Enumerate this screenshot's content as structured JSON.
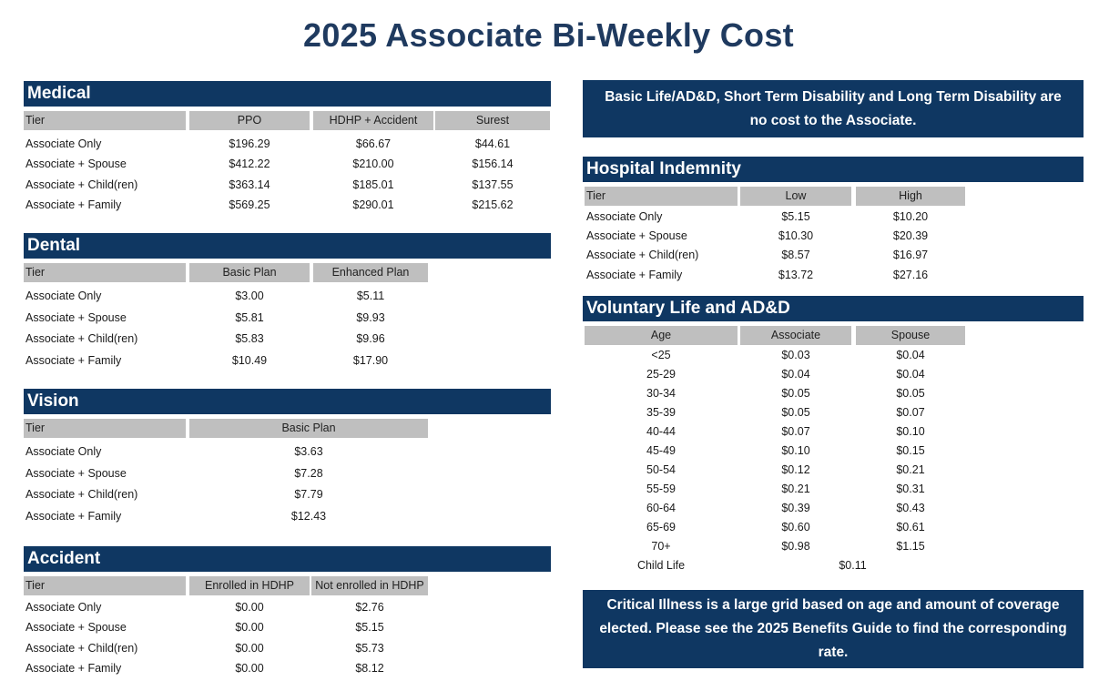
{
  "title": "2025 Associate Bi-Weekly Cost",
  "medical": {
    "header": "Medical",
    "columns": [
      "Tier",
      "PPO",
      "HDHP + Accident",
      "Surest"
    ],
    "rows": [
      [
        "Associate Only",
        "$196.29",
        "$66.67",
        "$44.61"
      ],
      [
        "Associate + Spouse",
        "$412.22",
        "$210.00",
        "$156.14"
      ],
      [
        "Associate + Child(ren)",
        "$363.14",
        "$185.01",
        "$137.55"
      ],
      [
        "Associate + Family",
        "$569.25",
        "$290.01",
        "$215.62"
      ]
    ]
  },
  "dental": {
    "header": "Dental",
    "columns": [
      "Tier",
      "Basic Plan",
      "Enhanced Plan"
    ],
    "rows": [
      [
        "Associate Only",
        "$3.00",
        "$5.11"
      ],
      [
        "Associate + Spouse",
        "$5.81",
        "$9.93"
      ],
      [
        "Associate + Child(ren)",
        "$5.83",
        "$9.96"
      ],
      [
        "Associate + Family",
        "$10.49",
        "$17.90"
      ]
    ]
  },
  "vision": {
    "header": "Vision",
    "columns": [
      "Tier",
      "Basic Plan"
    ],
    "rows": [
      [
        "Associate Only",
        "$3.63"
      ],
      [
        "Associate + Spouse",
        "$7.28"
      ],
      [
        "Associate + Child(ren)",
        "$7.79"
      ],
      [
        "Associate + Family",
        "$12.43"
      ]
    ]
  },
  "accident": {
    "header": "Accident",
    "columns": [
      "Tier",
      "Enrolled in HDHP",
      "Not enrolled in HDHP"
    ],
    "rows": [
      [
        "Associate Only",
        "$0.00",
        "$2.76"
      ],
      [
        "Associate + Spouse",
        "$0.00",
        "$5.15"
      ],
      [
        "Associate + Child(ren)",
        "$0.00",
        "$5.73"
      ],
      [
        "Associate + Family",
        "$0.00",
        "$8.12"
      ]
    ]
  },
  "notice_top": "Basic Life/AD&D, Short Term Disability and Long Term Disability are no cost to the Associate.",
  "hospital": {
    "header": "Hospital Indemnity",
    "columns": [
      "Tier",
      "Low",
      "High"
    ],
    "rows": [
      [
        "Associate Only",
        "$5.15",
        "$10.20"
      ],
      [
        "Associate + Spouse",
        "$10.30",
        "$20.39"
      ],
      [
        "Associate + Child(ren)",
        "$8.57",
        "$16.97"
      ],
      [
        "Associate + Family",
        "$13.72",
        "$27.16"
      ]
    ]
  },
  "voluntary": {
    "header": "Voluntary Life and AD&D",
    "columns": [
      "Age",
      "Associate",
      "Spouse"
    ],
    "rows": [
      [
        "<25",
        "$0.03",
        "$0.04"
      ],
      [
        "25-29",
        "$0.04",
        "$0.04"
      ],
      [
        "30-34",
        "$0.05",
        "$0.05"
      ],
      [
        "35-39",
        "$0.05",
        "$0.07"
      ],
      [
        "40-44",
        "$0.07",
        "$0.10"
      ],
      [
        "45-49",
        "$0.10",
        "$0.15"
      ],
      [
        "50-54",
        "$0.12",
        "$0.21"
      ],
      [
        "55-59",
        "$0.21",
        "$0.31"
      ],
      [
        "60-64",
        "$0.39",
        "$0.43"
      ],
      [
        "65-69",
        "$0.60",
        "$0.61"
      ],
      [
        "70+",
        "$0.98",
        "$1.15"
      ]
    ],
    "child_life_label": "Child Life",
    "child_life_value": "$0.11"
  },
  "notice_bottom": "Critical Illness is a large grid based on age and amount of coverage elected. Please see the 2025 Benefits Guide to find the corresponding rate.",
  "colors": {
    "header_bg": "#0f3762",
    "title": "#1f3a5f",
    "col_head_bg": "#bfbfbf"
  }
}
